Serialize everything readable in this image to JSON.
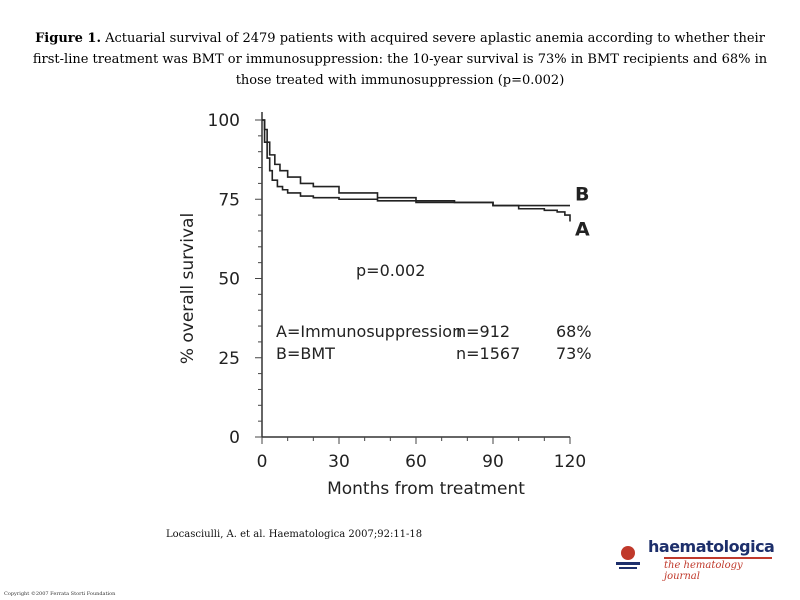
{
  "slide": {
    "title_bold": "Figure 1.",
    "title_text": "Actuarial survival of 2479 patients with acquired severe aplastic anemia according to whether their first-line treatment was BMT or immunosuppression: the 10-year survival is 73% in BMT recipients and 68% in those treated with immunosuppression (p=0.002)",
    "citation": "Locasciulli, A. et al. Haematologica 2007;92:11-18",
    "copyright": "Copyright ©2007 Ferrata Storti Foundation",
    "logo_name": "haematologica",
    "logo_tagline": "the hematology journal"
  },
  "chart_data": {
    "type": "line",
    "title": "",
    "xlabel": "Months from treatment",
    "ylabel": "% overall survival",
    "xlim": [
      0,
      120
    ],
    "ylim": [
      0,
      100
    ],
    "xticks": [
      0,
      30,
      60,
      90,
      120
    ],
    "yticks": [
      0,
      25,
      50,
      75,
      100
    ],
    "annotation": "p=0.002",
    "series": [
      {
        "name": "A",
        "label": "A=Immunosuppression",
        "n": "n=912",
        "pct": "68%",
        "x": [
          0,
          1,
          2,
          3,
          5,
          7,
          10,
          15,
          20,
          30,
          45,
          60,
          75,
          90,
          100,
          110,
          115,
          118,
          120
        ],
        "y": [
          100,
          97,
          93,
          89,
          86,
          84,
          82,
          80,
          79,
          77,
          75.5,
          74.5,
          74,
          73,
          72,
          71.5,
          71,
          70,
          68
        ]
      },
      {
        "name": "B",
        "label": "B=BMT",
        "n": "n=1567",
        "pct": "73%",
        "x": [
          0,
          1,
          2,
          3,
          4,
          6,
          8,
          10,
          15,
          20,
          30,
          45,
          60,
          90,
          120
        ],
        "y": [
          100,
          93,
          88,
          84,
          81,
          79,
          78,
          77,
          76,
          75.5,
          75,
          74.5,
          74,
          73,
          73
        ]
      }
    ]
  }
}
